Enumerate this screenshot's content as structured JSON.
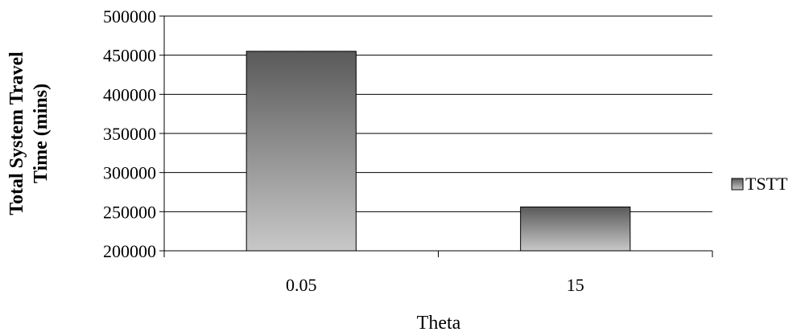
{
  "chart_data": {
    "type": "bar",
    "categories": [
      "0.05",
      "15"
    ],
    "series": [
      {
        "name": "TSTT",
        "values": [
          455000,
          256000
        ]
      }
    ],
    "title": "",
    "xlabel": "Theta",
    "ylabel": "Total System Travel Time (mins)",
    "ylabel_lines": [
      "Total System Travel",
      "Time (mins)"
    ],
    "ylim": [
      200000,
      500000
    ],
    "yticks": [
      "200000",
      "250000",
      "300000",
      "350000",
      "400000",
      "450000",
      "500000"
    ],
    "grid": true,
    "legend": "right",
    "colors": {
      "bar_top": "#5a5a5a",
      "bar_bottom": "#c8c8c8",
      "grid": "#000000",
      "axis": "#000000"
    }
  }
}
